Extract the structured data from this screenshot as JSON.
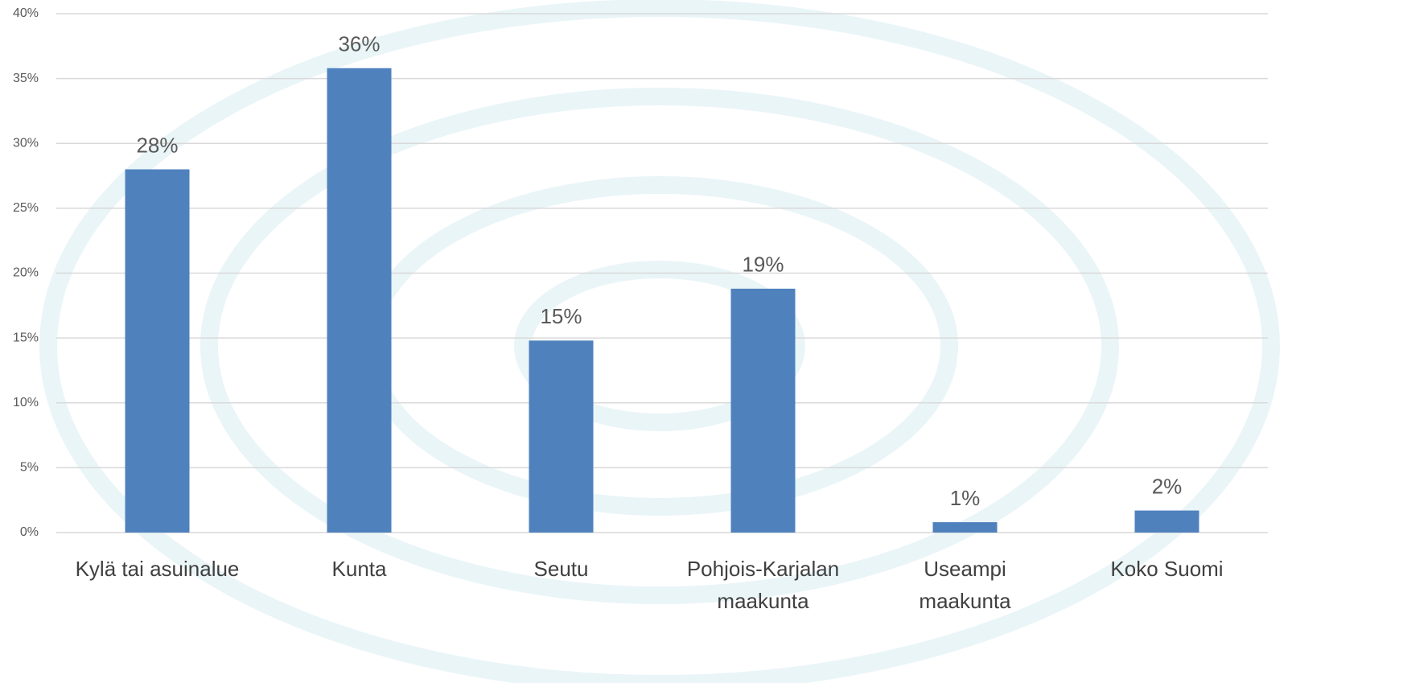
{
  "chart_data": {
    "type": "bar",
    "categories": [
      "Kylä tai asuinalue",
      "Kunta",
      "Seutu",
      "Pohjois-Karjalan\nmaakunta",
      "Useampi\nmaakunta",
      "Koko Suomi"
    ],
    "values": [
      28,
      35.8,
      14.8,
      18.8,
      0.8,
      1.7
    ],
    "value_labels": [
      "28%",
      "36%",
      "15%",
      "19%",
      "1%",
      "2%"
    ],
    "color": "#4f81bd",
    "ylim": [
      0,
      40
    ],
    "yticks": [
      {
        "value": 0,
        "label": "0%"
      },
      {
        "value": 5,
        "label": "5%"
      },
      {
        "value": 10,
        "label": "10%"
      },
      {
        "value": 15,
        "label": "15%"
      },
      {
        "value": 20,
        "label": "20%"
      },
      {
        "value": 25,
        "label": "25%"
      },
      {
        "value": 30,
        "label": "30%"
      },
      {
        "value": 35,
        "label": "35%"
      },
      {
        "value": 40,
        "label": "40%"
      }
    ],
    "grid": true
  }
}
